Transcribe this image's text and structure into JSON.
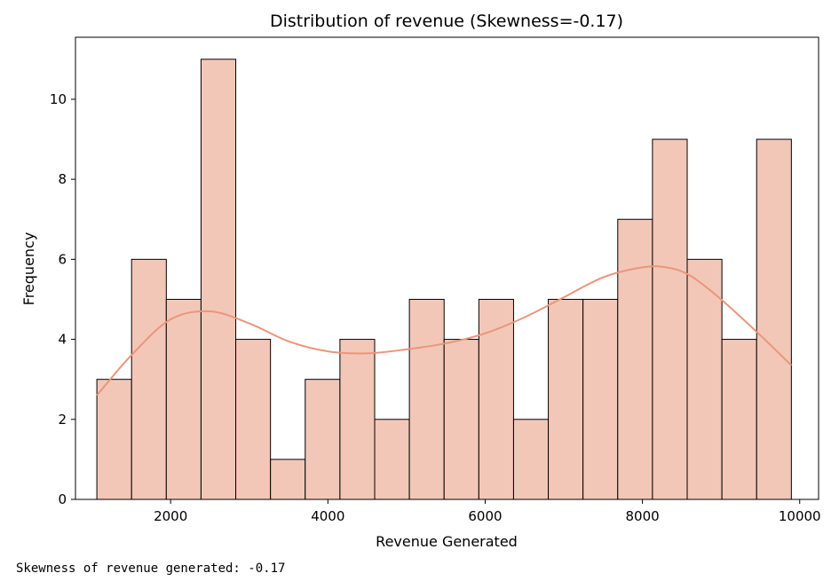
{
  "chart_data": {
    "type": "histogram",
    "title": "Distribution of revenue (Skewness=-0.17)",
    "xlabel": "Revenue Generated",
    "ylabel": "Frequency",
    "xlim": [
      790,
      10240
    ],
    "ylim": [
      0,
      11.55
    ],
    "xticks": [
      2000,
      4000,
      6000,
      8000,
      10000
    ],
    "yticks": [
      0,
      2,
      4,
      6,
      8,
      10
    ],
    "grid": false,
    "bar_color": "#f3c7b8",
    "edge_color": "#000000",
    "kde_color": "#e9967a",
    "bin_start": 1062,
    "bin_width": 441.6,
    "counts": [
      3,
      6,
      5,
      11,
      4,
      1,
      3,
      4,
      2,
      5,
      4,
      5,
      2,
      5,
      5,
      7,
      9,
      6,
      4,
      9
    ],
    "kde": {
      "x": [
        1062,
        1500,
        2000,
        2500,
        3000,
        3500,
        4000,
        4500,
        5000,
        5500,
        6000,
        6500,
        7000,
        7500,
        8000,
        8300,
        8600,
        9000,
        9500,
        9894
      ],
      "y": [
        2.6,
        3.6,
        4.5,
        4.7,
        4.4,
        3.95,
        3.7,
        3.65,
        3.75,
        3.9,
        4.15,
        4.55,
        5.05,
        5.55,
        5.8,
        5.8,
        5.6,
        5.0,
        4.1,
        3.35
      ]
    }
  },
  "console": {
    "text": "Skewness of revenue generated: -0.17"
  }
}
